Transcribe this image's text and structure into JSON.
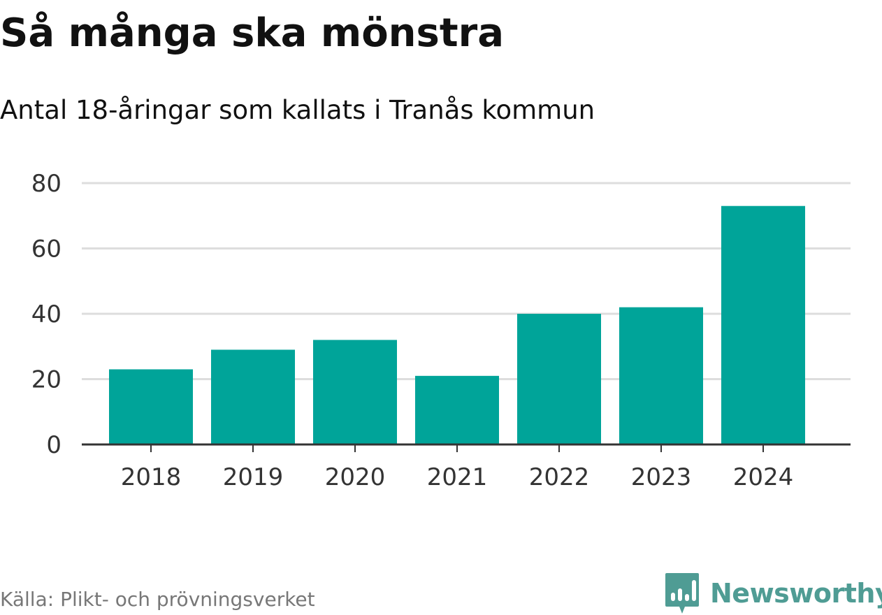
{
  "chart_data": {
    "type": "bar",
    "title": "Så många ska mönstra",
    "subtitle": "Antal 18-åringar som kallats i Tranås kommun",
    "categories": [
      "2018",
      "2019",
      "2020",
      "2021",
      "2022",
      "2023",
      "2024"
    ],
    "values": [
      23,
      29,
      32,
      21,
      40,
      42,
      73
    ],
    "ylim": [
      0,
      80
    ],
    "yticks": [
      "0",
      "20",
      "40",
      "60",
      "80"
    ],
    "xlabel": "",
    "ylabel": "",
    "grid": true,
    "legend": "none",
    "bar_color": "#00a499",
    "grid_color": "#dddddd",
    "axis_color": "#333333"
  },
  "footer": {
    "source": "Källa: Plikt- och prövningsverket",
    "brand": "Newsworthy",
    "brand_color": "#4f9c94",
    "brand_icon": "bar-chart-speech-bubble-icon"
  }
}
